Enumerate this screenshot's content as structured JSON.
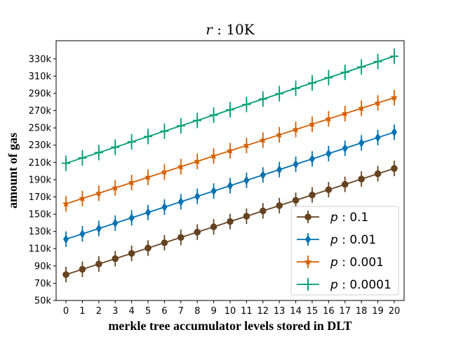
{
  "chart_data": {
    "type": "line",
    "title": "r : 10K",
    "title_parts": {
      "var": "r",
      "sep": " : ",
      "value": "10K"
    },
    "xlabel": "merkle tree accumulator levels stored in DLT",
    "ylabel": "amount of gas",
    "x": [
      0,
      1,
      2,
      3,
      4,
      5,
      6,
      7,
      8,
      9,
      10,
      11,
      12,
      13,
      14,
      15,
      16,
      17,
      18,
      19,
      20
    ],
    "xlim": [
      -0.6,
      20.6
    ],
    "ylim": [
      50000,
      351000
    ],
    "yticks": [
      50000,
      70000,
      90000,
      110000,
      130000,
      150000,
      170000,
      190000,
      210000,
      230000,
      250000,
      270000,
      290000,
      310000,
      330000
    ],
    "ytick_labels": [
      "50k",
      "70k",
      "90k",
      "110k",
      "130k",
      "150k",
      "170k",
      "190k",
      "210k",
      "230k",
      "250k",
      "270k",
      "290k",
      "310k",
      "330k"
    ],
    "grid": false,
    "legend_position": "lower-right",
    "series": [
      {
        "name": "p : 0.1",
        "name_parts": {
          "var": "p",
          "value": " : 0.1"
        },
        "color": "#654321",
        "marker": "circle",
        "start": 80000,
        "end": 203000,
        "error": 9000
      },
      {
        "name": "p : 0.01",
        "name_parts": {
          "var": "p",
          "value": " : 0.01"
        },
        "color": "#0072B2",
        "marker": "diamond",
        "start": 121000,
        "end": 245000,
        "error": 9000
      },
      {
        "name": "p : 0.001",
        "name_parts": {
          "var": "p",
          "value": " : 0.001"
        },
        "color": "#D55E00",
        "marker": "star",
        "start": 162000,
        "end": 285000,
        "error": 9000
      },
      {
        "name": "p : 0.0001",
        "name_parts": {
          "var": "p",
          "value": " : 0.0001"
        },
        "color": "#009E73",
        "marker": "plus",
        "start": 209000,
        "end": 333000,
        "error": 9000
      }
    ]
  }
}
